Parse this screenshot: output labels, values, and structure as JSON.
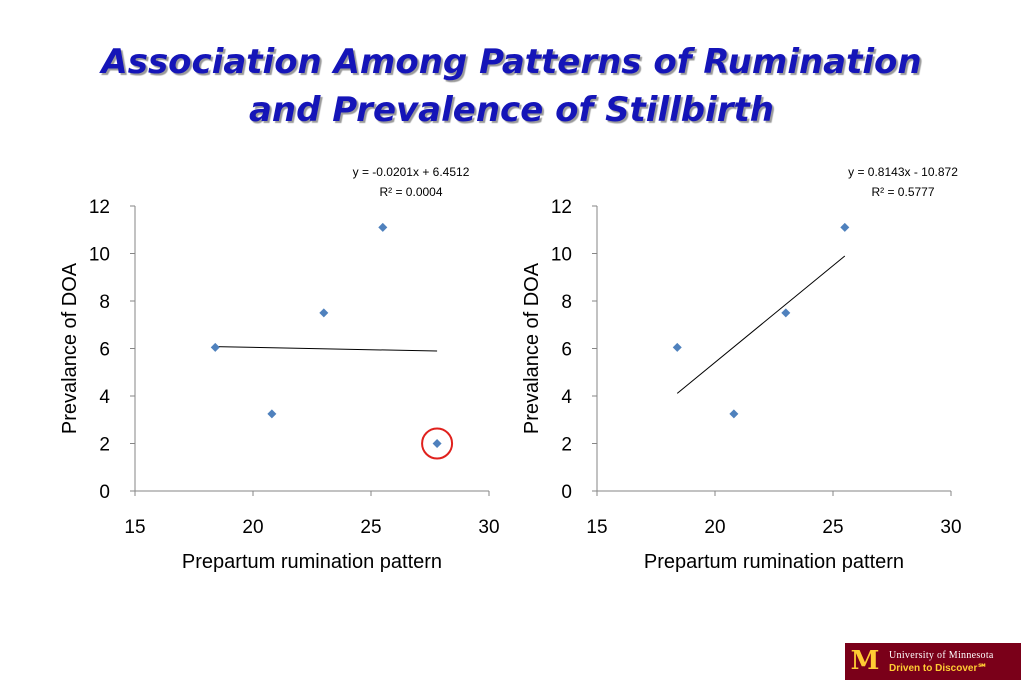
{
  "slide": {
    "title_line1": "Association Among Patterns of Rumination",
    "title_line2": "and Prevalence of Stillbirth"
  },
  "colors": {
    "title": "#1515b8",
    "marker": "#4f81bd",
    "highlight_circle": "#e0211d",
    "logo_background": "#7a0019",
    "logo_gold": "#ffcc33"
  },
  "chart_data": [
    {
      "type": "scatter",
      "title": "",
      "xlabel": "Prepartum rumination pattern",
      "ylabel": "Prevalance of DOA",
      "xlim": [
        15,
        30
      ],
      "ylim": [
        0,
        12
      ],
      "xticks": [
        15,
        20,
        25,
        30
      ],
      "yticks": [
        0,
        2,
        4,
        6,
        8,
        10,
        12
      ],
      "grid": false,
      "points": [
        {
          "x": 18.4,
          "y": 6.05
        },
        {
          "x": 20.8,
          "y": 3.25
        },
        {
          "x": 23.0,
          "y": 7.5
        },
        {
          "x": 25.5,
          "y": 11.1
        },
        {
          "x": 27.8,
          "y": 2.0
        }
      ],
      "highlighted_point_index": 4,
      "trendline": {
        "type": "linear",
        "slope": -0.0201,
        "intercept": 6.4512,
        "x_range": [
          18.4,
          27.8
        ],
        "equation_label": "y = -0.0201x + 6.4512",
        "r2_label": "R² = 0.0004"
      }
    },
    {
      "type": "scatter",
      "title": "",
      "xlabel": "Prepartum rumination pattern",
      "ylabel": "Prevalance of DOA",
      "xlim": [
        15,
        30
      ],
      "ylim": [
        0,
        12
      ],
      "xticks": [
        15,
        20,
        25,
        30
      ],
      "yticks": [
        0,
        2,
        4,
        6,
        8,
        10,
        12
      ],
      "grid": false,
      "points": [
        {
          "x": 18.4,
          "y": 6.05
        },
        {
          "x": 20.8,
          "y": 3.25
        },
        {
          "x": 23.0,
          "y": 7.5
        },
        {
          "x": 25.5,
          "y": 11.1
        }
      ],
      "trendline": {
        "type": "linear",
        "slope": 0.8143,
        "intercept": -10.872,
        "x_range": [
          18.4,
          25.5
        ],
        "equation_label": "y = 0.8143x - 10.872",
        "r2_label": "R² = 0.5777"
      }
    }
  ],
  "logo": {
    "mark": "M",
    "name": "University of Minnesota",
    "tagline": "Driven to Discover℠"
  }
}
